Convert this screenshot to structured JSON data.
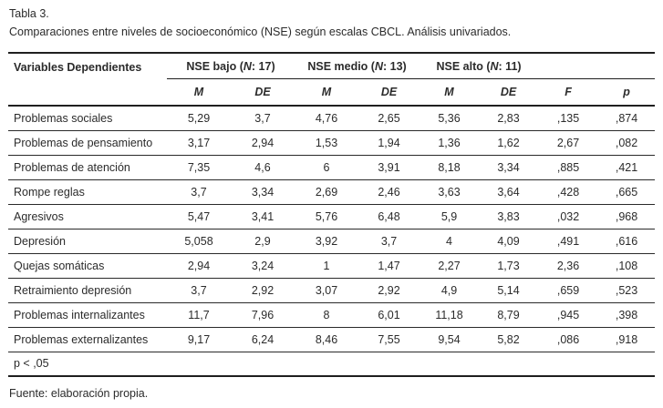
{
  "title": "Tabla 3.",
  "subtitle": "Comparaciones entre niveles de socioeconómico (NSE) según escalas CBCL. Análisis univariados.",
  "table": {
    "label_header": "Variables Dependientes",
    "groups": [
      {
        "pre": "NSE bajo (",
        "n": "N",
        "post": ": 17)"
      },
      {
        "pre": "NSE medio (",
        "n": "N",
        "post": ": 13)"
      },
      {
        "pre": "NSE alto (",
        "n": "N",
        "post": ": 11)"
      }
    ],
    "subheaders": [
      "M",
      "DE",
      "M",
      "DE",
      "M",
      "DE",
      "F",
      "p"
    ],
    "rows": [
      {
        "label": "Problemas sociales",
        "values": [
          "5,29",
          "3,7",
          "4,76",
          "2,65",
          "5,36",
          "2,83",
          ",135",
          ",874"
        ]
      },
      {
        "label": "Problemas de pensamiento",
        "values": [
          "3,17",
          "2,94",
          "1,53",
          "1,94",
          "1,36",
          "1,62",
          "2,67",
          ",082"
        ]
      },
      {
        "label": "Problemas de atención",
        "values": [
          "7,35",
          "4,6",
          "6",
          "3,91",
          "8,18",
          "3,34",
          ",885",
          ",421"
        ]
      },
      {
        "label": "Rompe reglas",
        "values": [
          "3,7",
          "3,34",
          "2,69",
          "2,46",
          "3,63",
          "3,64",
          ",428",
          ",665"
        ]
      },
      {
        "label": "Agresivos",
        "values": [
          "5,47",
          "3,41",
          "5,76",
          "6,48",
          "5,9",
          "3,83",
          ",032",
          ",968"
        ]
      },
      {
        "label": "Depresión",
        "values": [
          "5,058",
          "2,9",
          "3,92",
          "3,7",
          "4",
          "4,09",
          ",491",
          ",616"
        ]
      },
      {
        "label": "Quejas somáticas",
        "values": [
          "2,94",
          "3,24",
          "1",
          "1,47",
          "2,27",
          "1,73",
          "2,36",
          ",108"
        ]
      },
      {
        "label": "Retraimiento depresión",
        "values": [
          "3,7",
          "2,92",
          "3,07",
          "2,92",
          "4,9",
          "5,14",
          ",659",
          ",523"
        ]
      },
      {
        "label": "Problemas internalizantes",
        "values": [
          "11,7",
          "7,96",
          "8",
          "6,01",
          "11,18",
          "8,79",
          ",945",
          ",398"
        ]
      },
      {
        "label": "Problemas externalizantes",
        "values": [
          "9,17",
          "6,24",
          "8,46",
          "7,55",
          "9,54",
          "5,82",
          ",086",
          ",918"
        ]
      }
    ],
    "note": "p < ,05"
  },
  "source": "Fuente: elaboración propia.",
  "colors": {
    "text": "#2b2b2b",
    "line": "#1f1f1f",
    "background": "#ffffff"
  }
}
